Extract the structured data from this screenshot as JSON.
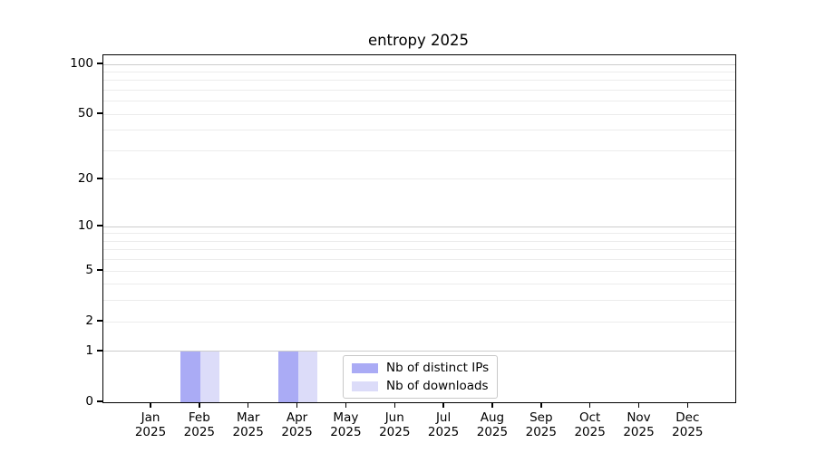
{
  "chart_data": {
    "type": "bar",
    "title": "entropy 2025",
    "year_label": "2025",
    "months": [
      "Jan",
      "Feb",
      "Mar",
      "Apr",
      "May",
      "Jun",
      "Jul",
      "Aug",
      "Sep",
      "Oct",
      "Nov",
      "Dec"
    ],
    "categories": [
      "Jan 2025",
      "Feb 2025",
      "Mar 2025",
      "Apr 2025",
      "May 2025",
      "Jun 2025",
      "Jul 2025",
      "Aug 2025",
      "Sep 2025",
      "Oct 2025",
      "Nov 2025",
      "Dec 2025"
    ],
    "series": [
      {
        "name": "Nb of distinct IPs",
        "color": "#aaabf5",
        "values": [
          0,
          1,
          0,
          1,
          0,
          0,
          0,
          0,
          0,
          0,
          0,
          0
        ]
      },
      {
        "name": "Nb of downloads",
        "color": "#dcdcf9",
        "values": [
          0,
          1,
          0,
          1,
          0,
          0,
          0,
          0,
          0,
          0,
          0,
          0
        ]
      }
    ],
    "yticks": [
      0,
      1,
      2,
      5,
      10,
      20,
      50,
      100
    ],
    "minor_yticks": [
      3,
      4,
      6,
      7,
      8,
      9,
      30,
      40,
      60,
      70,
      80,
      90
    ],
    "decade_gridlines": [
      1,
      10,
      100
    ],
    "yscale": "log1p",
    "ylim": [
      0,
      113
    ],
    "grid": "horizontal",
    "legend_position": "inside lower center"
  }
}
